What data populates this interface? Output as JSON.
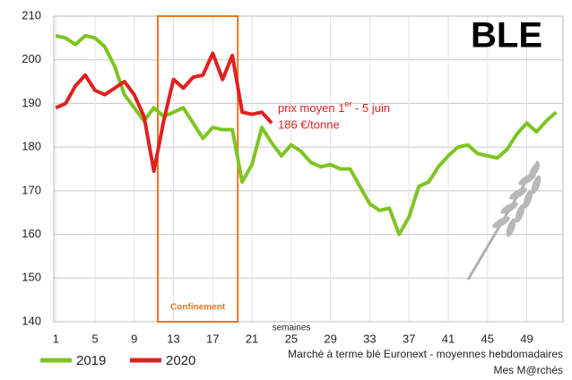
{
  "chart_data": {
    "type": "line",
    "title": "BLE",
    "x": [
      1,
      2,
      3,
      4,
      5,
      6,
      7,
      8,
      9,
      10,
      11,
      12,
      13,
      14,
      15,
      16,
      17,
      18,
      19,
      20,
      21,
      22,
      23,
      24,
      25,
      26,
      27,
      28,
      29,
      30,
      31,
      32,
      33,
      34,
      35,
      36,
      37,
      38,
      39,
      40,
      41,
      42,
      43,
      44,
      45,
      46,
      47,
      48,
      49,
      50,
      51,
      52
    ],
    "xlim": [
      0.8,
      52.7
    ],
    "xticks": [
      1,
      5,
      9,
      13,
      17,
      21,
      25,
      29,
      33,
      37,
      41,
      45,
      49
    ],
    "x_label": "semaines",
    "ylim": [
      140,
      210
    ],
    "yticks": [
      140,
      150,
      160,
      170,
      180,
      190,
      200,
      210
    ],
    "grid": true,
    "series": [
      {
        "name": "2019",
        "color": "#7dc522",
        "values": [
          205.5,
          205,
          203.5,
          205.5,
          205,
          203,
          198.5,
          192,
          189,
          186,
          189,
          187,
          188,
          189,
          185.5,
          182,
          184.5,
          184,
          184,
          172,
          176,
          184.5,
          181,
          178,
          180.5,
          179,
          176.5,
          175.5,
          176,
          175,
          175,
          171,
          167,
          165.5,
          166,
          160,
          164,
          171,
          172,
          175.5,
          178,
          180,
          180.5,
          178.5,
          178,
          177.5,
          179.5,
          183,
          185.5,
          183.5,
          186,
          188
        ]
      },
      {
        "name": "2020",
        "color": "#e02020",
        "values": [
          189,
          190,
          194,
          196.5,
          193,
          192,
          193.5,
          195,
          192,
          187,
          174.5,
          186,
          195.5,
          193.5,
          196,
          196.5,
          201.5,
          195.5,
          201,
          188,
          187.5,
          188,
          185.5,
          null,
          null,
          null,
          null,
          null,
          null,
          null,
          null,
          null,
          null,
          null,
          null,
          null,
          null,
          null,
          null,
          null,
          null,
          null,
          null,
          null,
          null,
          null,
          null,
          null,
          null,
          null,
          null,
          null
        ]
      }
    ],
    "highlight": {
      "label": "Confinement",
      "range": [
        11.4,
        19.55
      ],
      "color": "#e87722"
    },
    "annotation": {
      "text": "prix moyen 1",
      "sup": "er",
      "after": " - 5 juin",
      "line2": "186 €/tonne",
      "color": "#e02020"
    },
    "source": "Marché à terme blé Euronext  - moyennes hebdomadaires",
    "credit": "Mes M@rchés"
  }
}
